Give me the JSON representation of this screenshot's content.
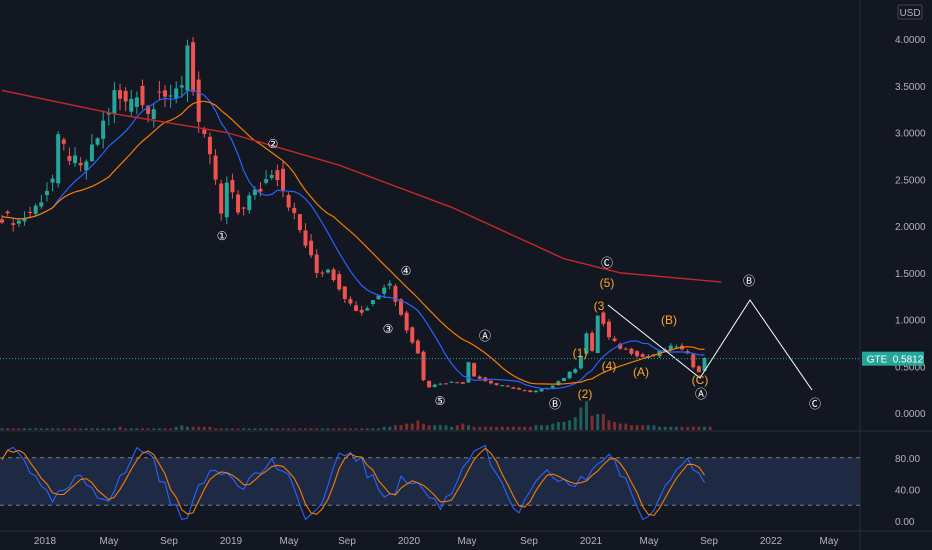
{
  "chart_data": {
    "type": "candlestick",
    "currency": "USD",
    "symbol": "GTE",
    "last_price": "0.5812",
    "price_axis": {
      "range": [
        0,
        4.0
      ],
      "ticks": [
        "4.0000",
        "3.5000",
        "3.0000",
        "2.5000",
        "2.0000",
        "1.5000",
        "1.0000",
        "0.5000",
        "0.0000"
      ]
    },
    "time_axis": {
      "ticks": [
        "2018",
        "May",
        "Sep",
        "2019",
        "May",
        "Sep",
        "2020",
        "May",
        "Sep",
        "2021",
        "May",
        "Sep",
        "2022",
        "May"
      ]
    },
    "osc_axis": {
      "ticks": [
        "80.00",
        "40.00",
        "0.00"
      ],
      "bands": [
        20,
        80
      ]
    },
    "price_path": [
      [
        0,
        2.1
      ],
      [
        3,
        2.05
      ],
      [
        6,
        2.2
      ],
      [
        9,
        2.5
      ],
      [
        10,
        2.9
      ],
      [
        12,
        2.75
      ],
      [
        14,
        2.6
      ],
      [
        16,
        2.8
      ],
      [
        18,
        3.1
      ],
      [
        20,
        3.4
      ],
      [
        22,
        3.3
      ],
      [
        24,
        3.45
      ],
      [
        26,
        3.2
      ],
      [
        28,
        3.5
      ],
      [
        30,
        3.3
      ],
      [
        32,
        3.55
      ],
      [
        33,
        3.95
      ],
      [
        34,
        3.5
      ],
      [
        35,
        3.1
      ],
      [
        36,
        2.9
      ],
      [
        37,
        2.7
      ],
      [
        38,
        2.5
      ],
      [
        39,
        2.1
      ],
      [
        40,
        2.45
      ],
      [
        41,
        2.3
      ],
      [
        42,
        2.15
      ],
      [
        44,
        2.3
      ],
      [
        46,
        2.4
      ],
      [
        48,
        2.6
      ],
      [
        49,
        2.55
      ],
      [
        50,
        2.4
      ],
      [
        52,
        2.1
      ],
      [
        54,
        1.8
      ],
      [
        56,
        1.5
      ],
      [
        58,
        1.55
      ],
      [
        60,
        1.35
      ],
      [
        62,
        1.15
      ],
      [
        64,
        1.1
      ],
      [
        66,
        1.2
      ],
      [
        68,
        1.35
      ],
      [
        69,
        1.4
      ],
      [
        70,
        1.2
      ],
      [
        72,
        0.9
      ],
      [
        74,
        0.65
      ],
      [
        75,
        0.35
      ],
      [
        76,
        0.28
      ],
      [
        78,
        0.32
      ],
      [
        80,
        0.33
      ],
      [
        82,
        0.32
      ],
      [
        83,
        0.55
      ],
      [
        84,
        0.4
      ],
      [
        86,
        0.34
      ],
      [
        88,
        0.3
      ],
      [
        90,
        0.28
      ],
      [
        92,
        0.25
      ],
      [
        94,
        0.22
      ],
      [
        96,
        0.25
      ],
      [
        98,
        0.3
      ],
      [
        100,
        0.38
      ],
      [
        102,
        0.48
      ],
      [
        103,
        0.62
      ],
      [
        104,
        0.85
      ],
      [
        105,
        0.65
      ],
      [
        106,
        1.05
      ],
      [
        107,
        0.95
      ],
      [
        108,
        0.8
      ],
      [
        110,
        0.7
      ],
      [
        112,
        0.65
      ],
      [
        114,
        0.6
      ],
      [
        116,
        0.62
      ],
      [
        118,
        0.68
      ],
      [
        120,
        0.72
      ],
      [
        122,
        0.62
      ],
      [
        123,
        0.5
      ],
      [
        124,
        0.45
      ],
      [
        125,
        0.58
      ]
    ],
    "volume": [
      1,
      1,
      1,
      1,
      1,
      1,
      1,
      1,
      1,
      1,
      1,
      1,
      1,
      1,
      1,
      1,
      1,
      1,
      1,
      1,
      1,
      2,
      1,
      1,
      1,
      1,
      1,
      1,
      1,
      1,
      1,
      2,
      3,
      2,
      2,
      2,
      2,
      2,
      1,
      1,
      1,
      1,
      1,
      1,
      1,
      1,
      1,
      1,
      1,
      1,
      1,
      1,
      1,
      1,
      1,
      1,
      1,
      1,
      1,
      1,
      1,
      1,
      1,
      1,
      1,
      1,
      1,
      1,
      2,
      2,
      3,
      3,
      4,
      4,
      6,
      4,
      3,
      3,
      3,
      3,
      2,
      3,
      4,
      3,
      2,
      2,
      2,
      2,
      2,
      2,
      2,
      2,
      2,
      2,
      2,
      3,
      3,
      3,
      4,
      5,
      5,
      6,
      8,
      14,
      18,
      9,
      10,
      10,
      6,
      5,
      4,
      4,
      3,
      3,
      3,
      3,
      3,
      2,
      2,
      2,
      2,
      2,
      2,
      2,
      2,
      2,
      2
    ],
    "wave_labels": [
      {
        "text": "①",
        "color": "white"
      },
      {
        "text": "②",
        "color": "white"
      },
      {
        "text": "③",
        "color": "white"
      },
      {
        "text": "④",
        "color": "white"
      },
      {
        "text": "⑤",
        "color": "white"
      },
      {
        "text": "Ⓐ",
        "color": "white"
      },
      {
        "text": "Ⓑ",
        "color": "white"
      },
      {
        "text": "Ⓒ",
        "color": "white"
      },
      {
        "text": "(1)",
        "color": "orange"
      },
      {
        "text": "(2)",
        "color": "orange"
      },
      {
        "text": "(3",
        "color": "orange"
      },
      {
        "text": "(4)",
        "color": "orange"
      },
      {
        "text": "(5)",
        "color": "orange"
      },
      {
        "text": "(A)",
        "color": "orange"
      },
      {
        "text": "(B)",
        "color": "orange"
      },
      {
        "text": "(C)",
        "color": "orange"
      },
      {
        "text": "Ⓐ",
        "color": "white"
      },
      {
        "text": "Ⓑ",
        "color": "white"
      },
      {
        "text": "Ⓒ",
        "color": "white"
      }
    ],
    "colors": {
      "bg": "#131722",
      "up": "#26a69a",
      "down": "#ef5350",
      "ma_blue": "#2962ff",
      "ma_orange": "#f57c00",
      "ma_red": "#c62828",
      "osc_k": "#2962ff",
      "osc_d": "#f57c00",
      "osc_band": "#1e2a44",
      "grid": "#2a2e39",
      "text": "#b2b5be",
      "orange_label": "#ffa726",
      "price_tag": "#26a69a"
    }
  }
}
